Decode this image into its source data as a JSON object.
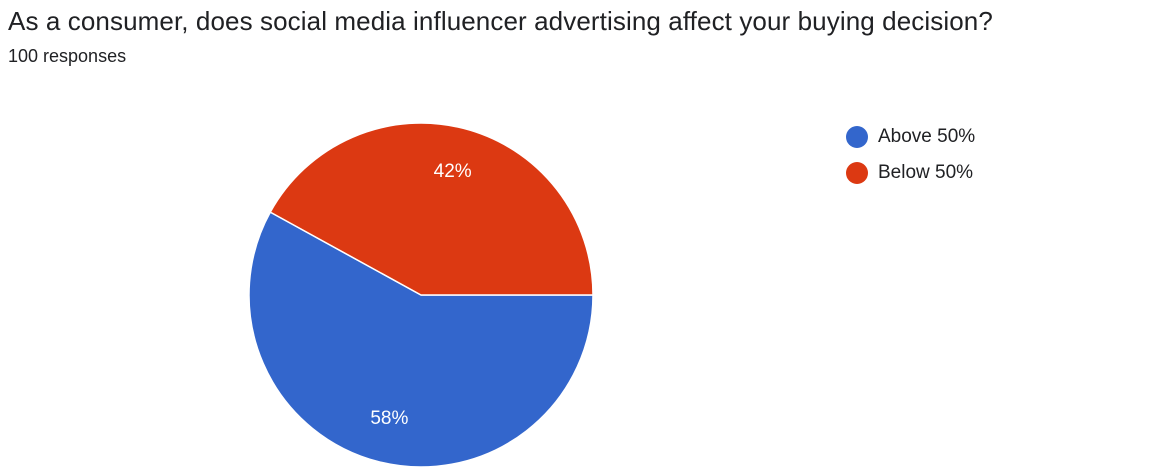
{
  "header": {
    "title": "As a consumer, does social media influencer advertising affect your buying decision?",
    "responses": "100 responses"
  },
  "chart_data": {
    "type": "pie",
    "categories": [
      "Above 50%",
      "Below 50%"
    ],
    "values": [
      58,
      42
    ],
    "labels": [
      "58%",
      "42%"
    ],
    "colors": [
      "#3366cc",
      "#dc3912"
    ],
    "legend_position": "right",
    "start_angle": "3 o'clock, counterclockwise order: first slice runs clockwise downward"
  },
  "legend": {
    "items": [
      {
        "label": "Above 50%",
        "color": "#3366cc"
      },
      {
        "label": "Below 50%",
        "color": "#dc3912"
      }
    ]
  }
}
